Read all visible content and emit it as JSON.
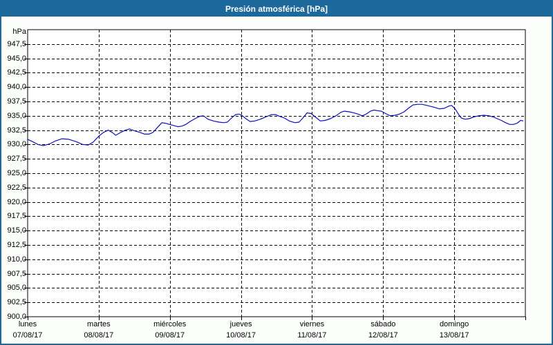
{
  "title": "Presión atmosférica [hPa]",
  "window": {
    "titlebar_color": "#1e699c",
    "border_color": "#1e699c",
    "background_color": "#fbfefb",
    "plot_background_color": "#ffffff"
  },
  "chart_data": {
    "type": "line",
    "title": "Presión atmosférica [hPa]",
    "legend": "none",
    "grid": "dashed-black",
    "y_axis": {
      "unit": "hPa",
      "min": 900,
      "max": 950,
      "tick_step": 2.5,
      "tick_labels": [
        "947,5",
        "945,0",
        "942,5",
        "940,0",
        "937,5",
        "935,0",
        "932,5",
        "930,0",
        "927,5",
        "925,0",
        "922,5",
        "920,0",
        "917,5",
        "915,0",
        "912,5",
        "910,0",
        "907,5",
        "905,0",
        "902,5",
        "900,0"
      ]
    },
    "x_axis": {
      "range_hours": 168,
      "day_width_hours": 24,
      "days": [
        {
          "name": "lunes",
          "date": "07/08/17"
        },
        {
          "name": "martes",
          "date": "08/08/17"
        },
        {
          "name": "miércoles",
          "date": "09/08/17"
        },
        {
          "name": "jueves",
          "date": "10/08/17"
        },
        {
          "name": "viernes",
          "date": "11/08/17"
        },
        {
          "name": "sábado",
          "date": "12/08/17"
        },
        {
          "name": "domingo",
          "date": "13/08/17"
        }
      ]
    },
    "series": [
      {
        "name": "Presión atmosférica",
        "color": "#0d0dbe",
        "x_hours": [
          0,
          1.6,
          3.5,
          5.3,
          7.4,
          9.3,
          11.6,
          13.9,
          16.3,
          18.6,
          20.4,
          22.1,
          23.9,
          25.6,
          27.2,
          28.8,
          29.7,
          31.4,
          33,
          34.4,
          36,
          37.9,
          39.5,
          40.9,
          42.3,
          43.7,
          45.3,
          46.5,
          47.9,
          49.3,
          50.7,
          52,
          53.4,
          54.8,
          56.5,
          58.1,
          59.3,
          60.9,
          62.7,
          64.6,
          66.2,
          67.4,
          68.8,
          70.2,
          71.3,
          72.5,
          73.9,
          75.1,
          76.7,
          78.5,
          80.4,
          82.3,
          83.7,
          85,
          86.7,
          88.3,
          90.2,
          91.6,
          92.9,
          94.3,
          95.7,
          97.1,
          98.8,
          100.4,
          102.2,
          104.1,
          105.7,
          106.9,
          108.5,
          110.1,
          111.5,
          112.9,
          114.3,
          115.7,
          116.9,
          118,
          119.4,
          120.8,
          122.4,
          124.1,
          125.5,
          127.1,
          128.5,
          130.1,
          131.7,
          133.1,
          134.8,
          137.1,
          139,
          140.6,
          142.2,
          143.1,
          144.3,
          145.5,
          146.4,
          147.6,
          149,
          150.6,
          152.2,
          154.1,
          155.7,
          157.1,
          158.5,
          159.9,
          161.3,
          162.7,
          164,
          165.2,
          166.4,
          167.3
        ],
        "values_hpa": [
          930.9,
          930.5,
          930,
          929.8,
          930.1,
          930.6,
          931,
          930.9,
          930.5,
          930,
          929.9,
          930.4,
          931.4,
          932.1,
          932.5,
          932,
          931.6,
          932.1,
          932.5,
          932.7,
          932.4,
          932.1,
          931.8,
          931.8,
          932.1,
          932.9,
          933.8,
          933.7,
          933.5,
          933.3,
          933.1,
          933.2,
          933.5,
          934,
          934.5,
          934.9,
          935,
          934.4,
          934.1,
          933.9,
          933.8,
          933.9,
          934.6,
          935.2,
          935.3,
          935,
          934.4,
          934,
          934.1,
          934.4,
          934.8,
          935.2,
          935.2,
          934.9,
          934.6,
          934.1,
          933.8,
          933.9,
          934.6,
          935.5,
          935.4,
          934.8,
          934.1,
          934.2,
          934.5,
          935,
          935.6,
          935.8,
          935.7,
          935.5,
          935.3,
          935,
          935.3,
          935.8,
          936,
          935.9,
          935.8,
          935.4,
          935,
          935.1,
          935.3,
          935.7,
          936.3,
          936.9,
          937,
          937,
          936.8,
          936.5,
          936.2,
          936.3,
          936.7,
          936.8,
          936.2,
          935.2,
          934.6,
          934.4,
          934.5,
          934.8,
          935,
          935.1,
          935,
          934.8,
          934.5,
          934.2,
          933.8,
          933.5,
          933.5,
          933.7,
          934.2,
          934.1
        ]
      }
    ]
  }
}
